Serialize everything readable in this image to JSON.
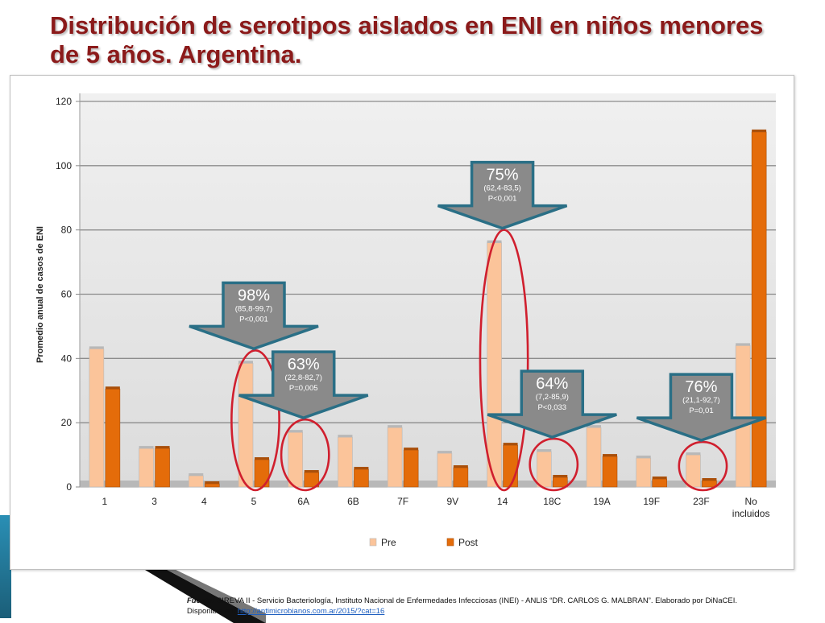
{
  "slide": {
    "title": "Distribución de serotipos aislados en ENI en niños menores de 5 años. Argentina."
  },
  "source": {
    "label": "Fuente:",
    "text": "SIREVA II - Servicio Bacteriología, Instituto Nacional de Enfermedades Infecciosas (INEI) - ANLIS “DR. CARLOS G. MALBRAN”. Elaborado por DiNaCEI.",
    "available_label": "Disponible en:",
    "link": "http://antimicrobianos.com.ar/2015/?cat=16"
  },
  "chart_data": {
    "type": "bar",
    "title": "",
    "xlabel": "",
    "ylabel": "Promedio anual de casos de ENI",
    "ylim": [
      0,
      120
    ],
    "yticks": [
      0,
      20,
      40,
      60,
      80,
      100,
      120
    ],
    "categories": [
      "1",
      "3",
      "4",
      "5",
      "6A",
      "6B",
      "7F",
      "9V",
      "14",
      "18C",
      "19A",
      "19F",
      "23F",
      "No incluidos"
    ],
    "series": [
      {
        "name": "Pre",
        "color": "#fbc49a",
        "values": [
          43,
          12,
          3.5,
          38.5,
          17,
          15.5,
          18.5,
          10.5,
          76,
          11,
          18.5,
          9,
          10,
          44
        ]
      },
      {
        "name": "Post",
        "color": "#e46c0a",
        "values": [
          30.5,
          12,
          1,
          8.5,
          4.5,
          5.5,
          11.5,
          6,
          13,
          3,
          9.5,
          2.5,
          2,
          110.5
        ]
      }
    ],
    "grid": true,
    "legend_position": "bottom",
    "annotations": [
      {
        "category": "5",
        "percent": "98%",
        "ci": "(85,8-99,7)",
        "p": "P<0,001"
      },
      {
        "category": "6A",
        "percent": "63%",
        "ci": "(22,8-82,7)",
        "p": "P=0,005"
      },
      {
        "category": "14",
        "percent": "75%",
        "ci": "(62,4-83,5)",
        "p": "P<0,001"
      },
      {
        "category": "18C",
        "percent": "64%",
        "ci": "(7,2-85,9)",
        "p": "P<0,033"
      },
      {
        "category": "23F",
        "percent": "76%",
        "ci": "(21,1-92,7)",
        "p": "P=0,01"
      }
    ]
  }
}
